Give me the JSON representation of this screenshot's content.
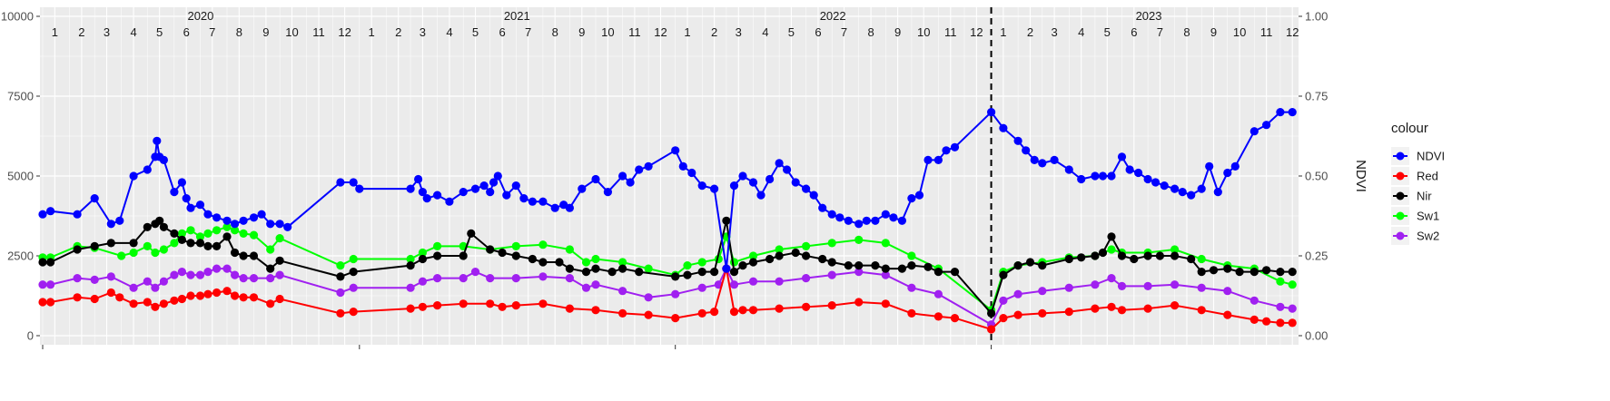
{
  "chart_data": {
    "type": "line",
    "title": "",
    "xlabel": "",
    "ylabel_left": "",
    "ylabel_right": "NDVI",
    "ylim_left": [
      0,
      10000
    ],
    "ylim_right": [
      0,
      1
    ],
    "y_ticks_left": [
      "0",
      "2500",
      "5000",
      "7500",
      "10000"
    ],
    "y_ticks_right": [
      "0.00",
      "0.25",
      "0.50",
      "0.75",
      "1.00"
    ],
    "grid": true,
    "legend_title": "colour",
    "legend_position": "right",
    "years": [
      "2020",
      "2021",
      "2022",
      "2023"
    ],
    "months": [
      "1",
      "2",
      "3",
      "4",
      "5",
      "6",
      "7",
      "8",
      "9",
      "10",
      "11",
      "12"
    ],
    "vertical_line_date": "2023-01-01",
    "colors": {
      "NDVI": "#0000ff",
      "Red": "#ff0000",
      "Nir": "#000000",
      "Sw1": "#00ff00",
      "Sw2": "#a020f0"
    },
    "series": [
      {
        "name": "NDVI",
        "axis": "right",
        "dates": [
          "2020-01-01",
          "2020-01-10",
          "2020-02-10",
          "2020-03-01",
          "2020-03-20",
          "2020-03-30",
          "2020-04-15",
          "2020-05-01",
          "2020-05-10",
          "2020-05-12",
          "2020-05-15",
          "2020-05-20",
          "2020-06-01",
          "2020-06-10",
          "2020-06-15",
          "2020-06-20",
          "2020-07-01",
          "2020-07-10",
          "2020-07-20",
          "2020-08-01",
          "2020-08-10",
          "2020-08-20",
          "2020-09-01",
          "2020-09-10",
          "2020-09-20",
          "2020-10-01",
          "2020-10-10",
          "2020-12-10",
          "2020-12-25",
          "2021-01-01",
          "2021-03-01",
          "2021-03-10",
          "2021-03-15",
          "2021-03-20",
          "2021-04-01",
          "2021-04-15",
          "2021-05-01",
          "2021-05-15",
          "2021-05-25",
          "2021-06-01",
          "2021-06-05",
          "2021-06-10",
          "2021-06-20",
          "2021-07-01",
          "2021-07-10",
          "2021-07-20",
          "2021-08-01",
          "2021-08-15",
          "2021-08-25",
          "2021-09-01",
          "2021-09-15",
          "2021-10-01",
          "2021-10-15",
          "2021-11-01",
          "2021-11-10",
          "2021-11-20",
          "2021-12-01",
          "2022-01-01",
          "2022-01-10",
          "2022-01-20",
          "2022-02-01",
          "2022-02-15",
          "2022-03-01",
          "2022-03-10",
          "2022-03-20",
          "2022-04-01",
          "2022-04-10",
          "2022-04-20",
          "2022-05-01",
          "2022-05-10",
          "2022-05-20",
          "2022-06-01",
          "2022-06-10",
          "2022-06-20",
          "2022-07-01",
          "2022-07-10",
          "2022-07-20",
          "2022-08-01",
          "2022-08-10",
          "2022-08-20",
          "2022-09-01",
          "2022-09-10",
          "2022-09-20",
          "2022-10-01",
          "2022-10-10",
          "2022-10-20",
          "2022-11-01",
          "2022-11-10",
          "2022-11-20",
          "2023-01-01",
          "2023-01-15",
          "2023-02-01",
          "2023-02-10",
          "2023-02-20",
          "2023-03-01",
          "2023-03-15",
          "2023-04-01",
          "2023-04-15",
          "2023-05-01",
          "2023-05-10",
          "2023-05-20",
          "2023-06-01",
          "2023-06-10",
          "2023-06-20",
          "2023-07-01",
          "2023-07-10",
          "2023-07-20",
          "2023-08-01",
          "2023-08-10",
          "2023-08-20",
          "2023-09-01",
          "2023-09-10",
          "2023-09-20",
          "2023-10-01",
          "2023-10-10",
          "2023-11-01",
          "2023-11-15",
          "2023-12-01",
          "2023-12-15"
        ],
        "values": [
          0.38,
          0.39,
          0.38,
          0.43,
          0.35,
          0.36,
          0.5,
          0.52,
          0.56,
          0.61,
          0.56,
          0.55,
          0.45,
          0.48,
          0.43,
          0.4,
          0.41,
          0.38,
          0.37,
          0.36,
          0.35,
          0.36,
          0.37,
          0.38,
          0.35,
          0.35,
          0.34,
          0.48,
          0.48,
          0.46,
          0.46,
          0.49,
          0.45,
          0.43,
          0.44,
          0.42,
          0.45,
          0.46,
          0.47,
          0.45,
          0.48,
          0.5,
          0.44,
          0.47,
          0.43,
          0.42,
          0.42,
          0.4,
          0.41,
          0.4,
          0.46,
          0.49,
          0.45,
          0.5,
          0.48,
          0.52,
          0.53,
          0.58,
          0.53,
          0.51,
          0.47,
          0.46,
          0.21,
          0.47,
          0.5,
          0.48,
          0.44,
          0.49,
          0.54,
          0.52,
          0.48,
          0.46,
          0.44,
          0.4,
          0.38,
          0.37,
          0.36,
          0.35,
          0.36,
          0.36,
          0.38,
          0.37,
          0.36,
          0.43,
          0.44,
          0.55,
          0.55,
          0.58,
          0.59,
          0.7,
          0.65,
          0.61,
          0.58,
          0.55,
          0.54,
          0.55,
          0.52,
          0.49,
          0.5,
          0.5,
          0.5,
          0.56,
          0.52,
          0.51,
          0.49,
          0.48,
          0.47,
          0.46,
          0.45,
          0.44,
          0.46,
          0.53,
          0.45,
          0.51,
          0.53,
          0.64,
          0.66,
          0.7,
          0.7
        ]
      },
      {
        "name": "Red",
        "axis": "left",
        "dates": [
          "2020-01-01",
          "2020-01-10",
          "2020-02-10",
          "2020-03-01",
          "2020-03-20",
          "2020-03-30",
          "2020-04-15",
          "2020-05-01",
          "2020-05-10",
          "2020-05-20",
          "2020-06-01",
          "2020-06-10",
          "2020-06-20",
          "2020-07-01",
          "2020-07-10",
          "2020-07-20",
          "2020-08-01",
          "2020-08-10",
          "2020-08-20",
          "2020-09-01",
          "2020-09-20",
          "2020-10-01",
          "2020-12-10",
          "2020-12-25",
          "2021-03-01",
          "2021-03-15",
          "2021-04-01",
          "2021-05-01",
          "2021-06-01",
          "2021-06-15",
          "2021-07-01",
          "2021-08-01",
          "2021-09-01",
          "2021-10-01",
          "2021-11-01",
          "2021-12-01",
          "2022-01-01",
          "2022-02-01",
          "2022-02-15",
          "2022-03-01",
          "2022-03-10",
          "2022-03-20",
          "2022-04-01",
          "2022-05-01",
          "2022-06-01",
          "2022-07-01",
          "2022-08-01",
          "2022-09-01",
          "2022-10-01",
          "2022-11-01",
          "2022-11-20",
          "2023-01-01",
          "2023-01-15",
          "2023-02-01",
          "2023-03-01",
          "2023-04-01",
          "2023-05-01",
          "2023-05-20",
          "2023-06-01",
          "2023-07-01",
          "2023-08-01",
          "2023-09-01",
          "2023-10-01",
          "2023-11-01",
          "2023-11-15",
          "2023-12-01",
          "2023-12-15"
        ],
        "values": [
          1050,
          1050,
          1200,
          1150,
          1350,
          1200,
          1000,
          1050,
          900,
          1000,
          1100,
          1150,
          1250,
          1250,
          1300,
          1350,
          1400,
          1250,
          1200,
          1200,
          1000,
          1150,
          700,
          750,
          850,
          900,
          950,
          1000,
          1000,
          900,
          950,
          1000,
          850,
          800,
          700,
          650,
          550,
          700,
          750,
          2100,
          750,
          800,
          800,
          850,
          900,
          950,
          1050,
          1000,
          700,
          600,
          550,
          200,
          550,
          650,
          700,
          750,
          850,
          900,
          800,
          850,
          950,
          800,
          650,
          500,
          450,
          400,
          400
        ]
      },
      {
        "name": "Nir",
        "axis": "left",
        "dates": [
          "2020-01-01",
          "2020-01-10",
          "2020-02-10",
          "2020-03-01",
          "2020-03-20",
          "2020-04-15",
          "2020-05-01",
          "2020-05-10",
          "2020-05-15",
          "2020-05-20",
          "2020-06-01",
          "2020-06-10",
          "2020-06-20",
          "2020-07-01",
          "2020-07-10",
          "2020-07-20",
          "2020-08-01",
          "2020-08-10",
          "2020-08-20",
          "2020-09-01",
          "2020-09-20",
          "2020-10-01",
          "2020-12-10",
          "2020-12-25",
          "2021-03-01",
          "2021-03-15",
          "2021-04-01",
          "2021-05-01",
          "2021-05-10",
          "2021-06-01",
          "2021-06-15",
          "2021-07-01",
          "2021-07-20",
          "2021-08-01",
          "2021-08-20",
          "2021-09-01",
          "2021-09-20",
          "2021-10-01",
          "2021-10-20",
          "2021-11-01",
          "2021-11-20",
          "2022-01-01",
          "2022-01-15",
          "2022-02-01",
          "2022-02-15",
          "2022-03-01",
          "2022-03-10",
          "2022-03-20",
          "2022-04-01",
          "2022-04-20",
          "2022-05-01",
          "2022-05-20",
          "2022-06-01",
          "2022-06-20",
          "2022-07-01",
          "2022-07-20",
          "2022-08-01",
          "2022-08-20",
          "2022-09-01",
          "2022-09-20",
          "2022-10-01",
          "2022-10-20",
          "2022-11-01",
          "2022-11-20",
          "2023-01-01",
          "2023-01-15",
          "2023-02-01",
          "2023-02-15",
          "2023-03-01",
          "2023-04-01",
          "2023-04-15",
          "2023-05-01",
          "2023-05-10",
          "2023-05-20",
          "2023-06-01",
          "2023-06-15",
          "2023-07-01",
          "2023-07-15",
          "2023-08-01",
          "2023-08-20",
          "2023-09-01",
          "2023-09-15",
          "2023-10-01",
          "2023-10-15",
          "2023-11-01",
          "2023-11-15",
          "2023-12-01",
          "2023-12-15"
        ],
        "values": [
          2300,
          2300,
          2700,
          2800,
          2900,
          2900,
          3400,
          3500,
          3600,
          3400,
          3200,
          3000,
          2900,
          2900,
          2800,
          2800,
          3100,
          2600,
          2500,
          2500,
          2100,
          2350,
          1850,
          2000,
          2200,
          2400,
          2500,
          2500,
          3200,
          2700,
          2600,
          2500,
          2400,
          2300,
          2300,
          2100,
          2000,
          2100,
          2000,
          2100,
          2000,
          1850,
          1900,
          2000,
          2000,
          3600,
          2000,
          2200,
          2300,
          2400,
          2500,
          2600,
          2500,
          2400,
          2300,
          2200,
          2200,
          2200,
          2100,
          2100,
          2200,
          2150,
          2000,
          2000,
          700,
          1900,
          2200,
          2300,
          2200,
          2400,
          2450,
          2500,
          2600,
          3100,
          2500,
          2400,
          2500,
          2500,
          2500,
          2400,
          2000,
          2050,
          2100,
          2000,
          2000,
          2050,
          2000,
          2000
        ]
      },
      {
        "name": "Sw1",
        "axis": "left",
        "dates": [
          "2020-01-01",
          "2020-01-10",
          "2020-02-10",
          "2020-03-01",
          "2020-04-01",
          "2020-04-15",
          "2020-05-01",
          "2020-05-10",
          "2020-05-20",
          "2020-06-01",
          "2020-06-10",
          "2020-06-20",
          "2020-07-01",
          "2020-07-10",
          "2020-07-20",
          "2020-08-01",
          "2020-08-10",
          "2020-08-20",
          "2020-09-01",
          "2020-09-20",
          "2020-10-01",
          "2020-12-10",
          "2020-12-25",
          "2021-03-01",
          "2021-03-15",
          "2021-04-01",
          "2021-05-01",
          "2021-06-01",
          "2021-07-01",
          "2021-08-01",
          "2021-09-01",
          "2021-09-20",
          "2021-10-01",
          "2021-11-01",
          "2021-12-01",
          "2022-01-01",
          "2022-01-15",
          "2022-02-01",
          "2022-02-20",
          "2022-03-01",
          "2022-03-10",
          "2022-04-01",
          "2022-05-01",
          "2022-06-01",
          "2022-07-01",
          "2022-08-01",
          "2022-09-01",
          "2022-10-01",
          "2022-11-01",
          "2023-01-01",
          "2023-01-15",
          "2023-02-01",
          "2023-03-01",
          "2023-04-01",
          "2023-05-01",
          "2023-05-20",
          "2023-06-01",
          "2023-07-01",
          "2023-08-01",
          "2023-09-01",
          "2023-10-01",
          "2023-11-01",
          "2023-12-01",
          "2023-12-15"
        ],
        "values": [
          2450,
          2450,
          2800,
          2750,
          2500,
          2600,
          2800,
          2600,
          2700,
          2900,
          3200,
          3300,
          3100,
          3200,
          3300,
          3400,
          3300,
          3200,
          3150,
          2700,
          3050,
          2200,
          2400,
          2400,
          2600,
          2800,
          2800,
          2700,
          2800,
          2850,
          2700,
          2300,
          2400,
          2300,
          2100,
          1900,
          2200,
          2300,
          2400,
          3100,
          2300,
          2500,
          2700,
          2800,
          2900,
          3000,
          2900,
          2500,
          2100,
          800,
          2000,
          2200,
          2300,
          2450,
          2500,
          2700,
          2600,
          2600,
          2700,
          2400,
          2200,
          2100,
          1700,
          1600
        ]
      },
      {
        "name": "Sw2",
        "axis": "left",
        "dates": [
          "2020-01-01",
          "2020-01-10",
          "2020-02-10",
          "2020-03-01",
          "2020-03-20",
          "2020-04-15",
          "2020-05-01",
          "2020-05-10",
          "2020-05-20",
          "2020-06-01",
          "2020-06-10",
          "2020-06-20",
          "2020-07-01",
          "2020-07-10",
          "2020-07-20",
          "2020-08-01",
          "2020-08-10",
          "2020-08-20",
          "2020-09-01",
          "2020-09-20",
          "2020-10-01",
          "2020-12-10",
          "2020-12-25",
          "2021-03-01",
          "2021-03-15",
          "2021-04-01",
          "2021-05-01",
          "2021-05-15",
          "2021-06-01",
          "2021-07-01",
          "2021-08-01",
          "2021-09-01",
          "2021-09-20",
          "2021-10-01",
          "2021-11-01",
          "2021-12-01",
          "2022-01-01",
          "2022-02-01",
          "2022-02-20",
          "2022-03-01",
          "2022-03-10",
          "2022-04-01",
          "2022-05-01",
          "2022-06-01",
          "2022-07-01",
          "2022-08-01",
          "2022-09-01",
          "2022-10-01",
          "2022-11-01",
          "2023-01-01",
          "2023-01-15",
          "2023-02-01",
          "2023-03-01",
          "2023-04-01",
          "2023-05-01",
          "2023-05-20",
          "2023-06-01",
          "2023-07-01",
          "2023-08-01",
          "2023-09-01",
          "2023-10-01",
          "2023-11-01",
          "2023-12-01",
          "2023-12-15"
        ],
        "values": [
          1600,
          1600,
          1800,
          1750,
          1850,
          1500,
          1700,
          1500,
          1700,
          1900,
          2000,
          1900,
          1900,
          2000,
          2100,
          2100,
          1900,
          1800,
          1800,
          1800,
          1900,
          1350,
          1500,
          1500,
          1700,
          1800,
          1800,
          2000,
          1800,
          1800,
          1850,
          1800,
          1500,
          1600,
          1400,
          1200,
          1300,
          1500,
          1600,
          2100,
          1600,
          1700,
          1700,
          1800,
          1900,
          2000,
          1900,
          1500,
          1300,
          350,
          1100,
          1300,
          1400,
          1500,
          1600,
          1800,
          1550,
          1550,
          1600,
          1500,
          1400,
          1100,
          900,
          850
        ]
      }
    ]
  }
}
